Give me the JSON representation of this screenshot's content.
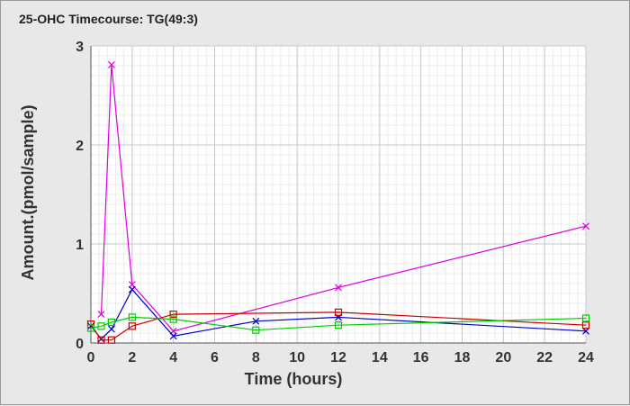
{
  "chart_data": {
    "type": "line",
    "title": "25-OHC Timecourse: TG(49:3)",
    "xlabel": "Time (hours)",
    "ylabel": "Amount.(pmol/sample)",
    "xlim": [
      0,
      24
    ],
    "ylim": [
      0,
      3
    ],
    "xticks": [
      0,
      2,
      4,
      6,
      8,
      10,
      12,
      14,
      16,
      18,
      20,
      22,
      24
    ],
    "yticks": [
      0,
      1,
      2,
      3
    ],
    "grid": true,
    "legend": "none",
    "series": [
      {
        "color": "#dd00dd",
        "marker": "x",
        "x": [
          0.5,
          1,
          2,
          4,
          12,
          24
        ],
        "y": [
          0.29,
          2.81,
          0.59,
          0.12,
          0.56,
          1.18
        ]
      },
      {
        "color": "#0000cc",
        "marker": "x",
        "x": [
          0,
          0.5,
          1,
          2,
          4,
          8,
          12,
          24
        ],
        "y": [
          0.17,
          0.04,
          0.14,
          0.54,
          0.07,
          0.22,
          0.26,
          0.12
        ]
      },
      {
        "color": "#cc0000",
        "marker": "square",
        "x": [
          0,
          0.5,
          1,
          2,
          4,
          12,
          24
        ],
        "y": [
          0.19,
          0.03,
          0.03,
          0.17,
          0.29,
          0.31,
          0.18
        ]
      },
      {
        "color": "#00cc00",
        "marker": "square",
        "x": [
          0,
          0.5,
          1,
          2,
          4,
          8,
          12,
          24
        ],
        "y": [
          0.15,
          0.17,
          0.21,
          0.26,
          0.24,
          0.13,
          0.18,
          0.25
        ]
      }
    ]
  }
}
